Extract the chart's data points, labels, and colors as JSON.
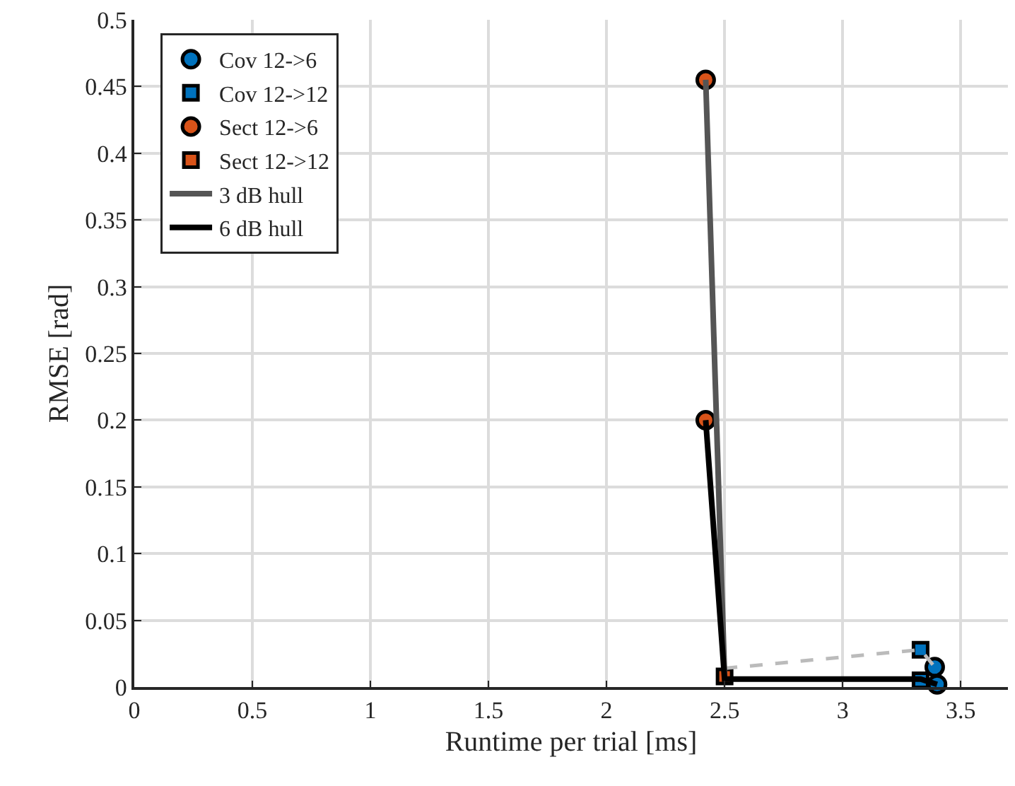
{
  "chart_data": {
    "type": "scatter",
    "xlabel": "Runtime per trial [ms]",
    "ylabel": "RMSE [rad]",
    "xlim": [
      0,
      3.7
    ],
    "xticks": [
      0,
      0.5,
      1,
      1.5,
      2,
      2.5,
      3,
      3.5
    ],
    "ylim": [
      0,
      0.5
    ],
    "yticks": [
      0,
      0.05,
      0.1,
      0.15,
      0.2,
      0.25,
      0.3,
      0.35,
      0.4,
      0.45,
      0.5
    ],
    "grid": true,
    "legend": "top left",
    "series": [
      {
        "name": "Cov 12->6",
        "marker": "circle",
        "color": "#0072bd",
        "x": [
          3.39,
          3.4
        ],
        "values": [
          0.015,
          0.002
        ]
      },
      {
        "name": "Cov 12->12",
        "marker": "square",
        "color": "#0072bd",
        "x": [
          3.33,
          3.33
        ],
        "values": [
          0.028,
          0.005
        ]
      },
      {
        "name": "Sect 12->6",
        "marker": "circle",
        "color": "#d95319",
        "x": [
          2.42,
          2.42
        ],
        "values": [
          0.455,
          0.2
        ]
      },
      {
        "name": "Sect 12->12",
        "marker": "square",
        "color": "#d95319",
        "x": [
          2.5
        ],
        "values": [
          0.008
        ]
      },
      {
        "type": "line",
        "marker": "none",
        "line_style": "dashed",
        "color": "#bbbbbb",
        "x": [
          2.5,
          3.33,
          3.39
        ],
        "values": [
          0.014,
          0.028,
          0.015
        ]
      },
      {
        "name": "3 dB hull",
        "type": "line",
        "marker": "none",
        "line_style": "solid",
        "color": "#555555",
        "x": [
          2.42,
          2.5
        ],
        "values": [
          0.455,
          0.008
        ]
      },
      {
        "name": "6 dB hull",
        "type": "line",
        "marker": "none",
        "line_style": "solid",
        "color": "#000000",
        "x": [
          2.42,
          2.5,
          3.33,
          3.4
        ],
        "values": [
          0.2,
          0.006,
          0.006,
          0.002
        ]
      }
    ]
  }
}
